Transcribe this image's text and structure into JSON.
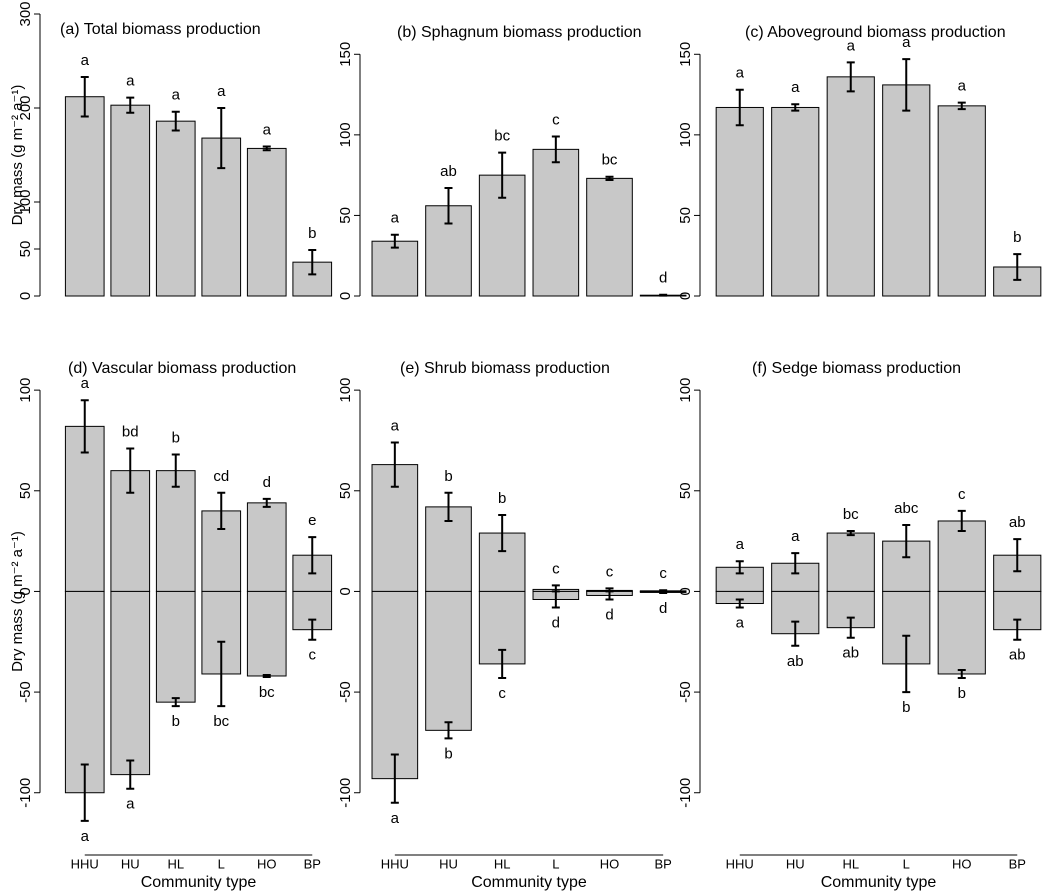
{
  "chart_data": [
    {
      "type": "bar",
      "title": "(a) Total biomass production",
      "y_label": "Dry mass (g m⁻² a⁻¹)",
      "ylim": [
        0,
        300
      ],
      "yticks": [
        0,
        50,
        100,
        200,
        300
      ],
      "color": "#c8c8c8",
      "series": [
        {
          "values": [
            212,
            203,
            186,
            168,
            157,
            36
          ],
          "errors": [
            21,
            8,
            10,
            32,
            2,
            13
          ],
          "letters": [
            "a",
            "a",
            "a",
            "a",
            "a",
            "b"
          ]
        }
      ]
    },
    {
      "type": "bar",
      "title": "(b) Sphagnum biomass production",
      "ylim": [
        0,
        175
      ],
      "yticks": [
        0,
        50,
        100,
        150
      ],
      "color": "#c8c8c8",
      "series": [
        {
          "values": [
            34,
            56,
            75,
            91,
            73,
            0.5
          ],
          "errors": [
            4,
            11,
            14,
            8,
            1,
            0.3
          ],
          "letters": [
            "a",
            "ab",
            "bc",
            "c",
            "bc",
            "d"
          ]
        }
      ]
    },
    {
      "type": "bar",
      "title": "(c) Aboveground biomass production",
      "ylim": [
        0,
        175
      ],
      "yticks": [
        0,
        50,
        100,
        150
      ],
      "color": "#c8c8c8",
      "series": [
        {
          "values": [
            117,
            117,
            136,
            131,
            118,
            18
          ],
          "errors": [
            11,
            2,
            9,
            16,
            2,
            8
          ],
          "letters": [
            "a",
            "a",
            "a",
            "a",
            "a",
            "b"
          ]
        }
      ]
    },
    {
      "type": "bar",
      "title": "(d) Vascular biomass production",
      "y_label": "Dry mass (g m⁻² a⁻¹)",
      "x_label": "Community type",
      "categories": [
        "HHU",
        "HU",
        "HL",
        "L",
        "HO",
        "BP"
      ],
      "ylim": [
        -120,
        110
      ],
      "yticks": [
        -100,
        -50,
        0,
        50,
        100
      ],
      "color": "#c8c8c8",
      "series": [
        {
          "values": [
            82,
            60,
            60,
            40,
            44,
            18
          ],
          "errors": [
            13,
            11,
            8,
            9,
            2,
            9
          ],
          "letters": [
            "a",
            "bd",
            "b",
            "cd",
            "d",
            "e"
          ]
        },
        {
          "values": [
            -100,
            -91,
            -55,
            -41,
            -42,
            -19
          ],
          "errors": [
            14,
            7,
            2,
            16,
            0.5,
            5
          ],
          "letters": [
            "a",
            "a",
            "b",
            "bc",
            "bc",
            "c"
          ]
        }
      ]
    },
    {
      "type": "bar",
      "title": "(e) Shrub biomass production",
      "x_label": "Community type",
      "categories": [
        "HHU",
        "HU",
        "HL",
        "L",
        "HO",
        "BP"
      ],
      "ylim": [
        -120,
        110
      ],
      "yticks": [
        -100,
        -50,
        0,
        50,
        100
      ],
      "color": "#c8c8c8",
      "series": [
        {
          "values": [
            63,
            42,
            29,
            1,
            0.5,
            0.3
          ],
          "errors": [
            11,
            7,
            9,
            2,
            1,
            0.3
          ],
          "letters": [
            "a",
            "b",
            "b",
            "c",
            "c",
            "c"
          ]
        },
        {
          "values": [
            -93,
            -69,
            -36,
            -4,
            -2,
            -0.5
          ],
          "errors": [
            12,
            4,
            7,
            4,
            2,
            0.3
          ],
          "letters": [
            "a",
            "b",
            "c",
            "d",
            "d",
            "d"
          ]
        }
      ]
    },
    {
      "type": "bar",
      "title": "(f) Sedge biomass production",
      "x_label": "Community type",
      "categories": [
        "HHU",
        "HU",
        "HL",
        "L",
        "HO",
        "BP"
      ],
      "ylim": [
        -120,
        110
      ],
      "yticks": [
        -100,
        -50,
        0,
        50,
        100
      ],
      "color": "#c8c8c8",
      "series": [
        {
          "values": [
            12,
            14,
            29,
            25,
            35,
            18
          ],
          "errors": [
            3,
            5,
            1,
            8,
            5,
            8
          ],
          "letters": [
            "a",
            "a",
            "bc",
            "abc",
            "c",
            "ab"
          ]
        },
        {
          "values": [
            -6,
            -21,
            -18,
            -36,
            -41,
            -19
          ],
          "errors": [
            2,
            6,
            5,
            14,
            2,
            5
          ],
          "letters": [
            "a",
            "ab",
            "ab",
            "b",
            "b",
            "ab"
          ]
        }
      ]
    }
  ]
}
